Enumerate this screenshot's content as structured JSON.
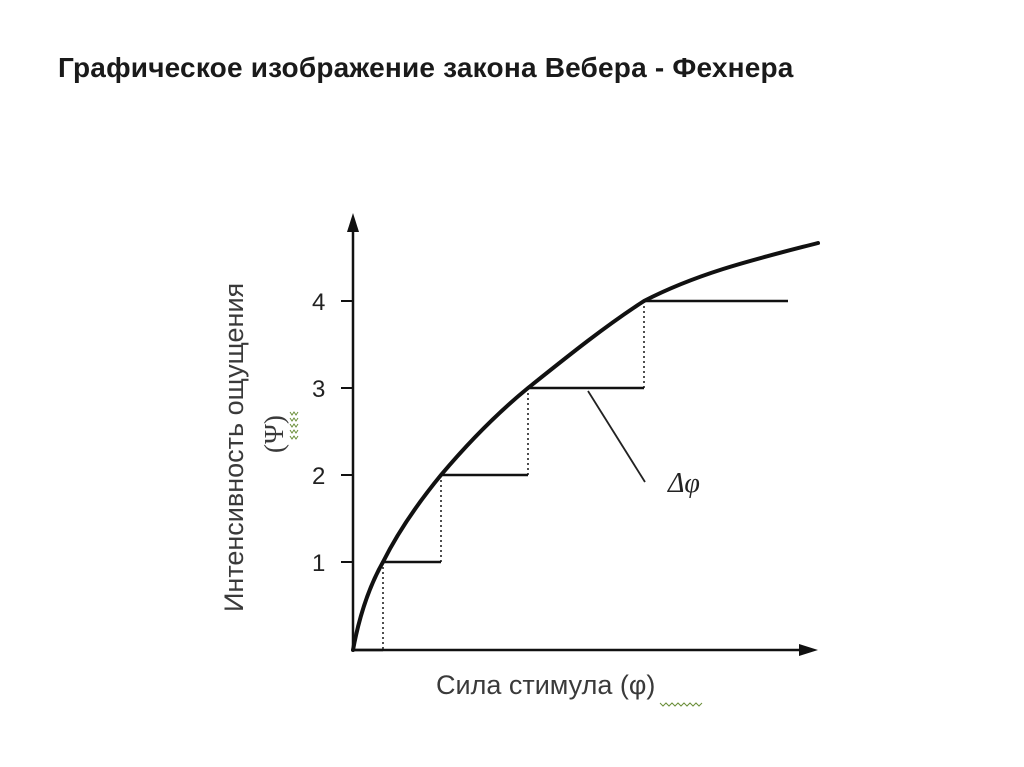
{
  "title": "Графическое изображение закона Вебера - Фехнера",
  "axes": {
    "y_label": "Интенсивность ощущения",
    "y_symbol": "(Ψ)",
    "x_label": "Сила стимула (φ)",
    "y_ticks": [
      "1",
      "2",
      "3",
      "4"
    ]
  },
  "annotation": {
    "label": "Δφ"
  },
  "colors": {
    "ink": "#111111",
    "text": "#3a3a3a",
    "squiggle": "#6b8f3a"
  }
}
